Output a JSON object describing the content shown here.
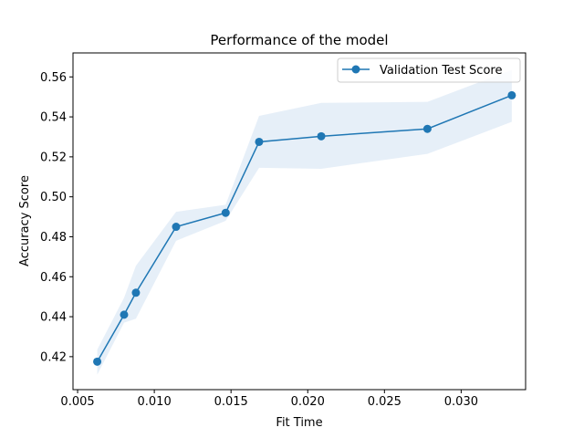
{
  "chart_data": {
    "type": "line",
    "title": "Performance of the model",
    "xlabel": "Fit Time",
    "ylabel": "Accuracy Score",
    "xlim": [
      0.0047,
      0.0342
    ],
    "ylim": [
      0.4035,
      0.572
    ],
    "xticks": [
      0.005,
      0.01,
      0.015,
      0.02,
      0.025,
      0.03
    ],
    "xtick_labels": [
      "0.005",
      "0.010",
      "0.015",
      "0.020",
      "0.025",
      "0.030"
    ],
    "yticks": [
      0.42,
      0.44,
      0.46,
      0.48,
      0.5,
      0.52,
      0.54,
      0.56
    ],
    "ytick_labels": [
      "0.42",
      "0.44",
      "0.46",
      "0.48",
      "0.50",
      "0.52",
      "0.54",
      "0.56"
    ],
    "grid": false,
    "legend_position": "top-right",
    "series": [
      {
        "name": "Validation Test Score",
        "color": "#1f77b4",
        "marker": "circle",
        "x": [
          0.00628,
          0.00803,
          0.0088,
          0.01142,
          0.01465,
          0.01683,
          0.02088,
          0.0278,
          0.0333
        ],
        "y": [
          0.4175,
          0.441,
          0.452,
          0.485,
          0.492,
          0.5275,
          0.5303,
          0.534,
          0.5508
        ],
        "band_upper": [
          0.4235,
          0.4495,
          0.4655,
          0.4925,
          0.496,
          0.5405,
          0.547,
          0.5475,
          0.5635
        ],
        "band_lower": [
          0.411,
          0.437,
          0.439,
          0.478,
          0.488,
          0.5145,
          0.514,
          0.5215,
          0.5375
        ],
        "band_color": "#d5e4f3"
      }
    ]
  }
}
